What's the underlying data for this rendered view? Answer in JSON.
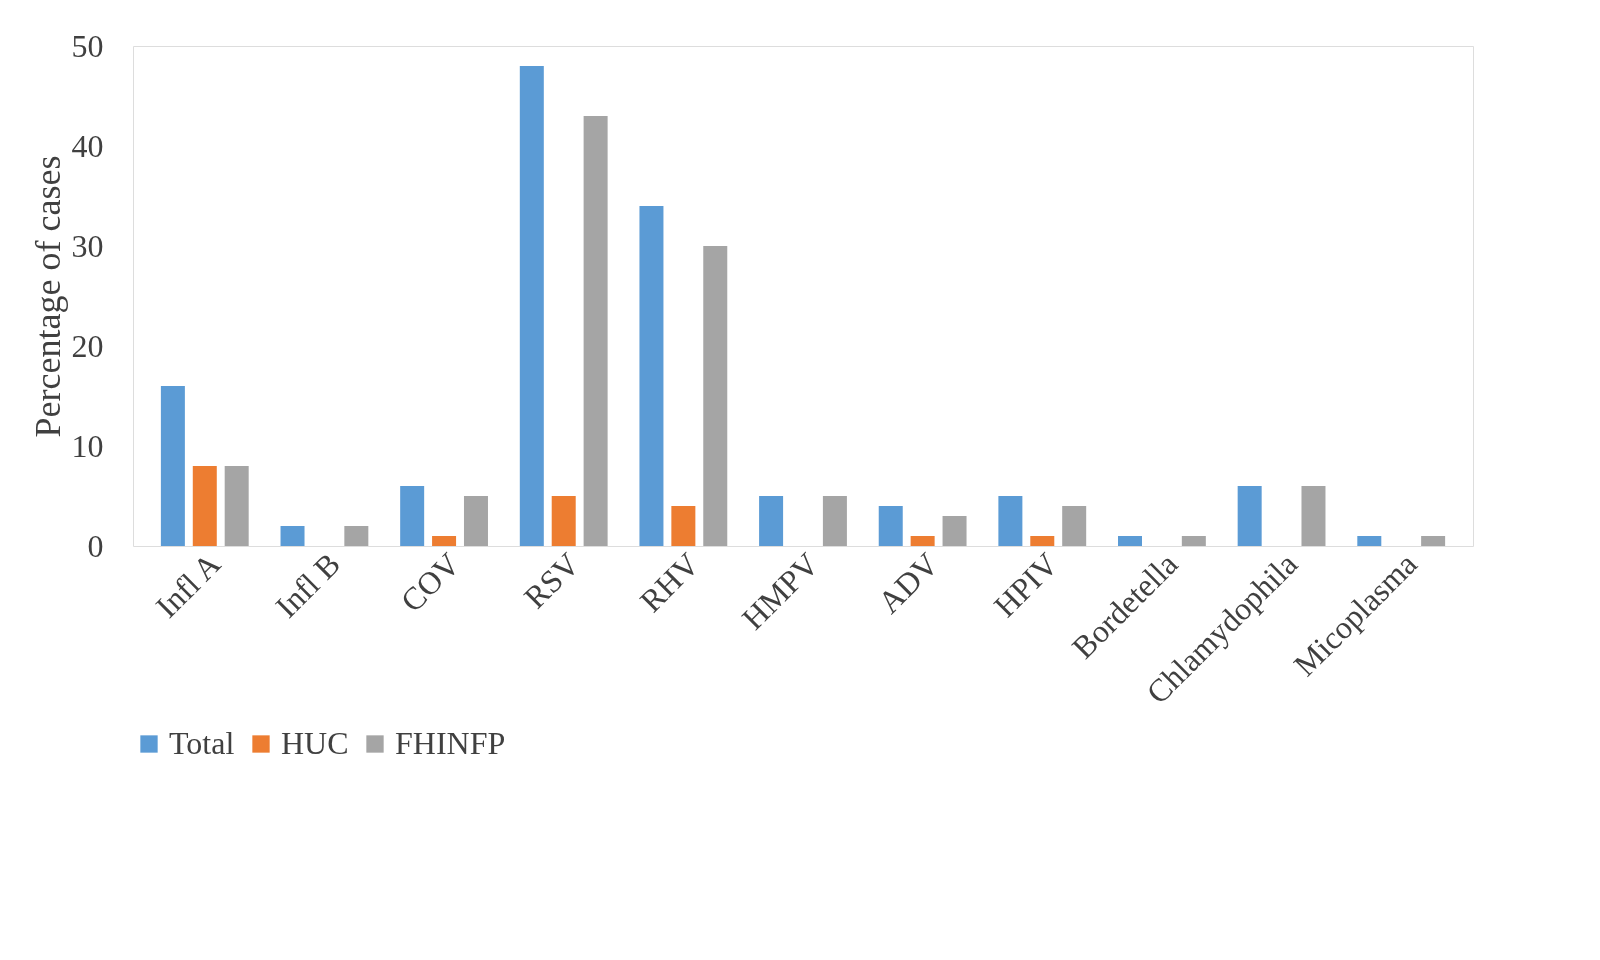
{
  "chart_data": {
    "type": "bar",
    "ylabel": "Percentage of cases",
    "categories": [
      "Infl A",
      "Infl B",
      "COV",
      "RSV",
      "RHV",
      "HMPV",
      "ADV",
      "HPIV",
      "Bordetella",
      "Chlamydophila",
      "Micoplasma"
    ],
    "series": [
      {
        "name": "Total",
        "color": "#5b9bd5",
        "values": [
          16,
          2,
          6,
          48,
          34,
          5,
          4,
          5,
          1,
          6,
          1
        ]
      },
      {
        "name": "HUC",
        "color": "#ed7d31",
        "values": [
          8,
          0,
          1,
          5,
          4,
          0,
          1,
          1,
          0,
          0,
          0
        ]
      },
      {
        "name": "FHINFP",
        "color": "#a5a5a5",
        "values": [
          8,
          2,
          5,
          43,
          30,
          5,
          3,
          4,
          1,
          6,
          1
        ]
      }
    ],
    "ylim": [
      0,
      50
    ],
    "yticks": [
      0,
      10,
      20,
      30,
      40,
      50
    ],
    "grid": false,
    "legend": "bottom"
  }
}
